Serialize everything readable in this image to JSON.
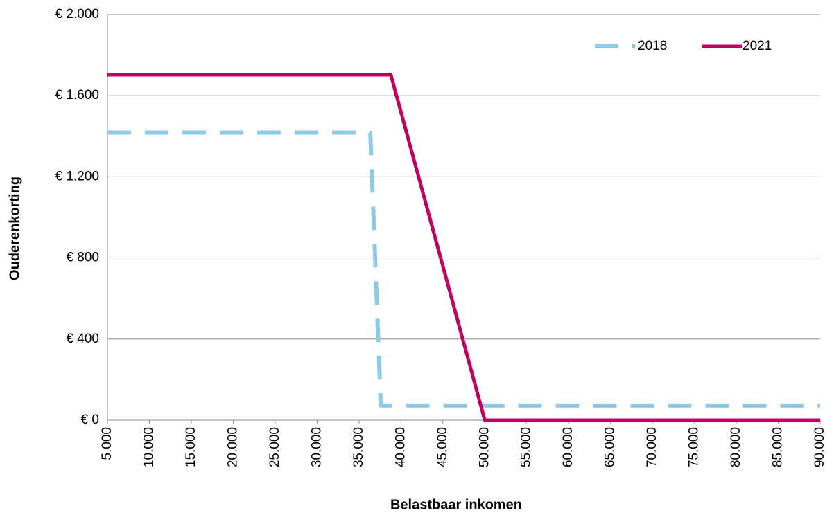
{
  "chart_data": {
    "type": "line",
    "x_label": "Belastbaar inkomen",
    "y_label": "Ouderenkorting",
    "series": [
      {
        "name": "2018",
        "color": "#8ecae6",
        "dashed": true,
        "x": [
          5000,
          36346,
          37600,
          90000
        ],
        "values": [
          1418,
          1418,
          72,
          72
        ]
      },
      {
        "name": "2021",
        "color": "#c2005f",
        "dashed": false,
        "x": [
          5000,
          38800,
          50000,
          90000
        ],
        "values": [
          1703,
          1703,
          0,
          0
        ]
      }
    ],
    "xlim": [
      5000,
      90000
    ],
    "xticks": [
      {
        "value": 5000,
        "label": "5.000"
      },
      {
        "value": 10000,
        "label": "10.000"
      },
      {
        "value": 15000,
        "label": "15.000"
      },
      {
        "value": 20000,
        "label": "20.000"
      },
      {
        "value": 25000,
        "label": "25.000"
      },
      {
        "value": 30000,
        "label": "30.000"
      },
      {
        "value": 35000,
        "label": "35.000"
      },
      {
        "value": 40000,
        "label": "40.000"
      },
      {
        "value": 45000,
        "label": "45.000"
      },
      {
        "value": 50000,
        "label": "50.000"
      },
      {
        "value": 55000,
        "label": "55.000"
      },
      {
        "value": 60000,
        "label": "60.000"
      },
      {
        "value": 65000,
        "label": "65.000"
      },
      {
        "value": 70000,
        "label": "70.000"
      },
      {
        "value": 75000,
        "label": "75.000"
      },
      {
        "value": 80000,
        "label": "80.000"
      },
      {
        "value": 85000,
        "label": "85.000"
      },
      {
        "value": 90000,
        "label": "90.000"
      }
    ],
    "ylim": [
      0,
      2000
    ],
    "yticks": [
      {
        "value": 0,
        "label": "€ 0"
      },
      {
        "value": 400,
        "label": "€ 400"
      },
      {
        "value": 800,
        "label": "€ 800"
      },
      {
        "value": 1200,
        "label": "€ 1.200"
      },
      {
        "value": 1600,
        "label": "€ 1.600"
      },
      {
        "value": 2000,
        "label": "€ 2.000"
      }
    ],
    "grid": true,
    "legend": "top-right"
  }
}
